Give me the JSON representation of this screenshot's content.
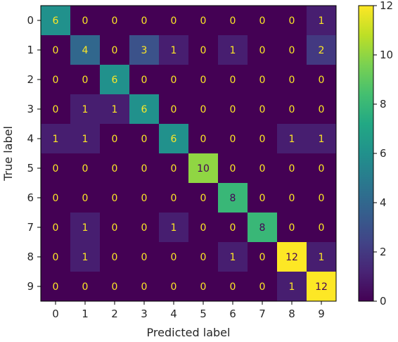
{
  "chart_data": {
    "type": "heatmap",
    "title": "",
    "xlabel": "Predicted label",
    "ylabel": "True label",
    "x_categories": [
      "0",
      "1",
      "2",
      "3",
      "4",
      "5",
      "6",
      "7",
      "8",
      "9"
    ],
    "y_categories": [
      "0",
      "1",
      "2",
      "3",
      "4",
      "5",
      "6",
      "7",
      "8",
      "9"
    ],
    "matrix": [
      [
        6,
        0,
        0,
        0,
        0,
        0,
        0,
        0,
        0,
        1
      ],
      [
        0,
        4,
        0,
        3,
        1,
        0,
        1,
        0,
        0,
        2
      ],
      [
        0,
        0,
        6,
        0,
        0,
        0,
        0,
        0,
        0,
        0
      ],
      [
        0,
        1,
        1,
        6,
        0,
        0,
        0,
        0,
        0,
        0
      ],
      [
        1,
        1,
        0,
        0,
        6,
        0,
        0,
        0,
        1,
        1
      ],
      [
        0,
        0,
        0,
        0,
        0,
        10,
        0,
        0,
        0,
        0
      ],
      [
        0,
        0,
        0,
        0,
        0,
        0,
        8,
        0,
        0,
        0
      ],
      [
        0,
        1,
        0,
        0,
        1,
        0,
        0,
        8,
        0,
        0
      ],
      [
        0,
        1,
        0,
        0,
        0,
        0,
        1,
        0,
        12,
        1
      ],
      [
        0,
        0,
        0,
        0,
        0,
        0,
        0,
        0,
        1,
        12
      ]
    ],
    "colormap": "viridis",
    "vmin": 0,
    "vmax": 12,
    "colorbar_ticks": [
      "0",
      "2",
      "4",
      "6",
      "8",
      "10",
      "12"
    ],
    "grid": false
  }
}
